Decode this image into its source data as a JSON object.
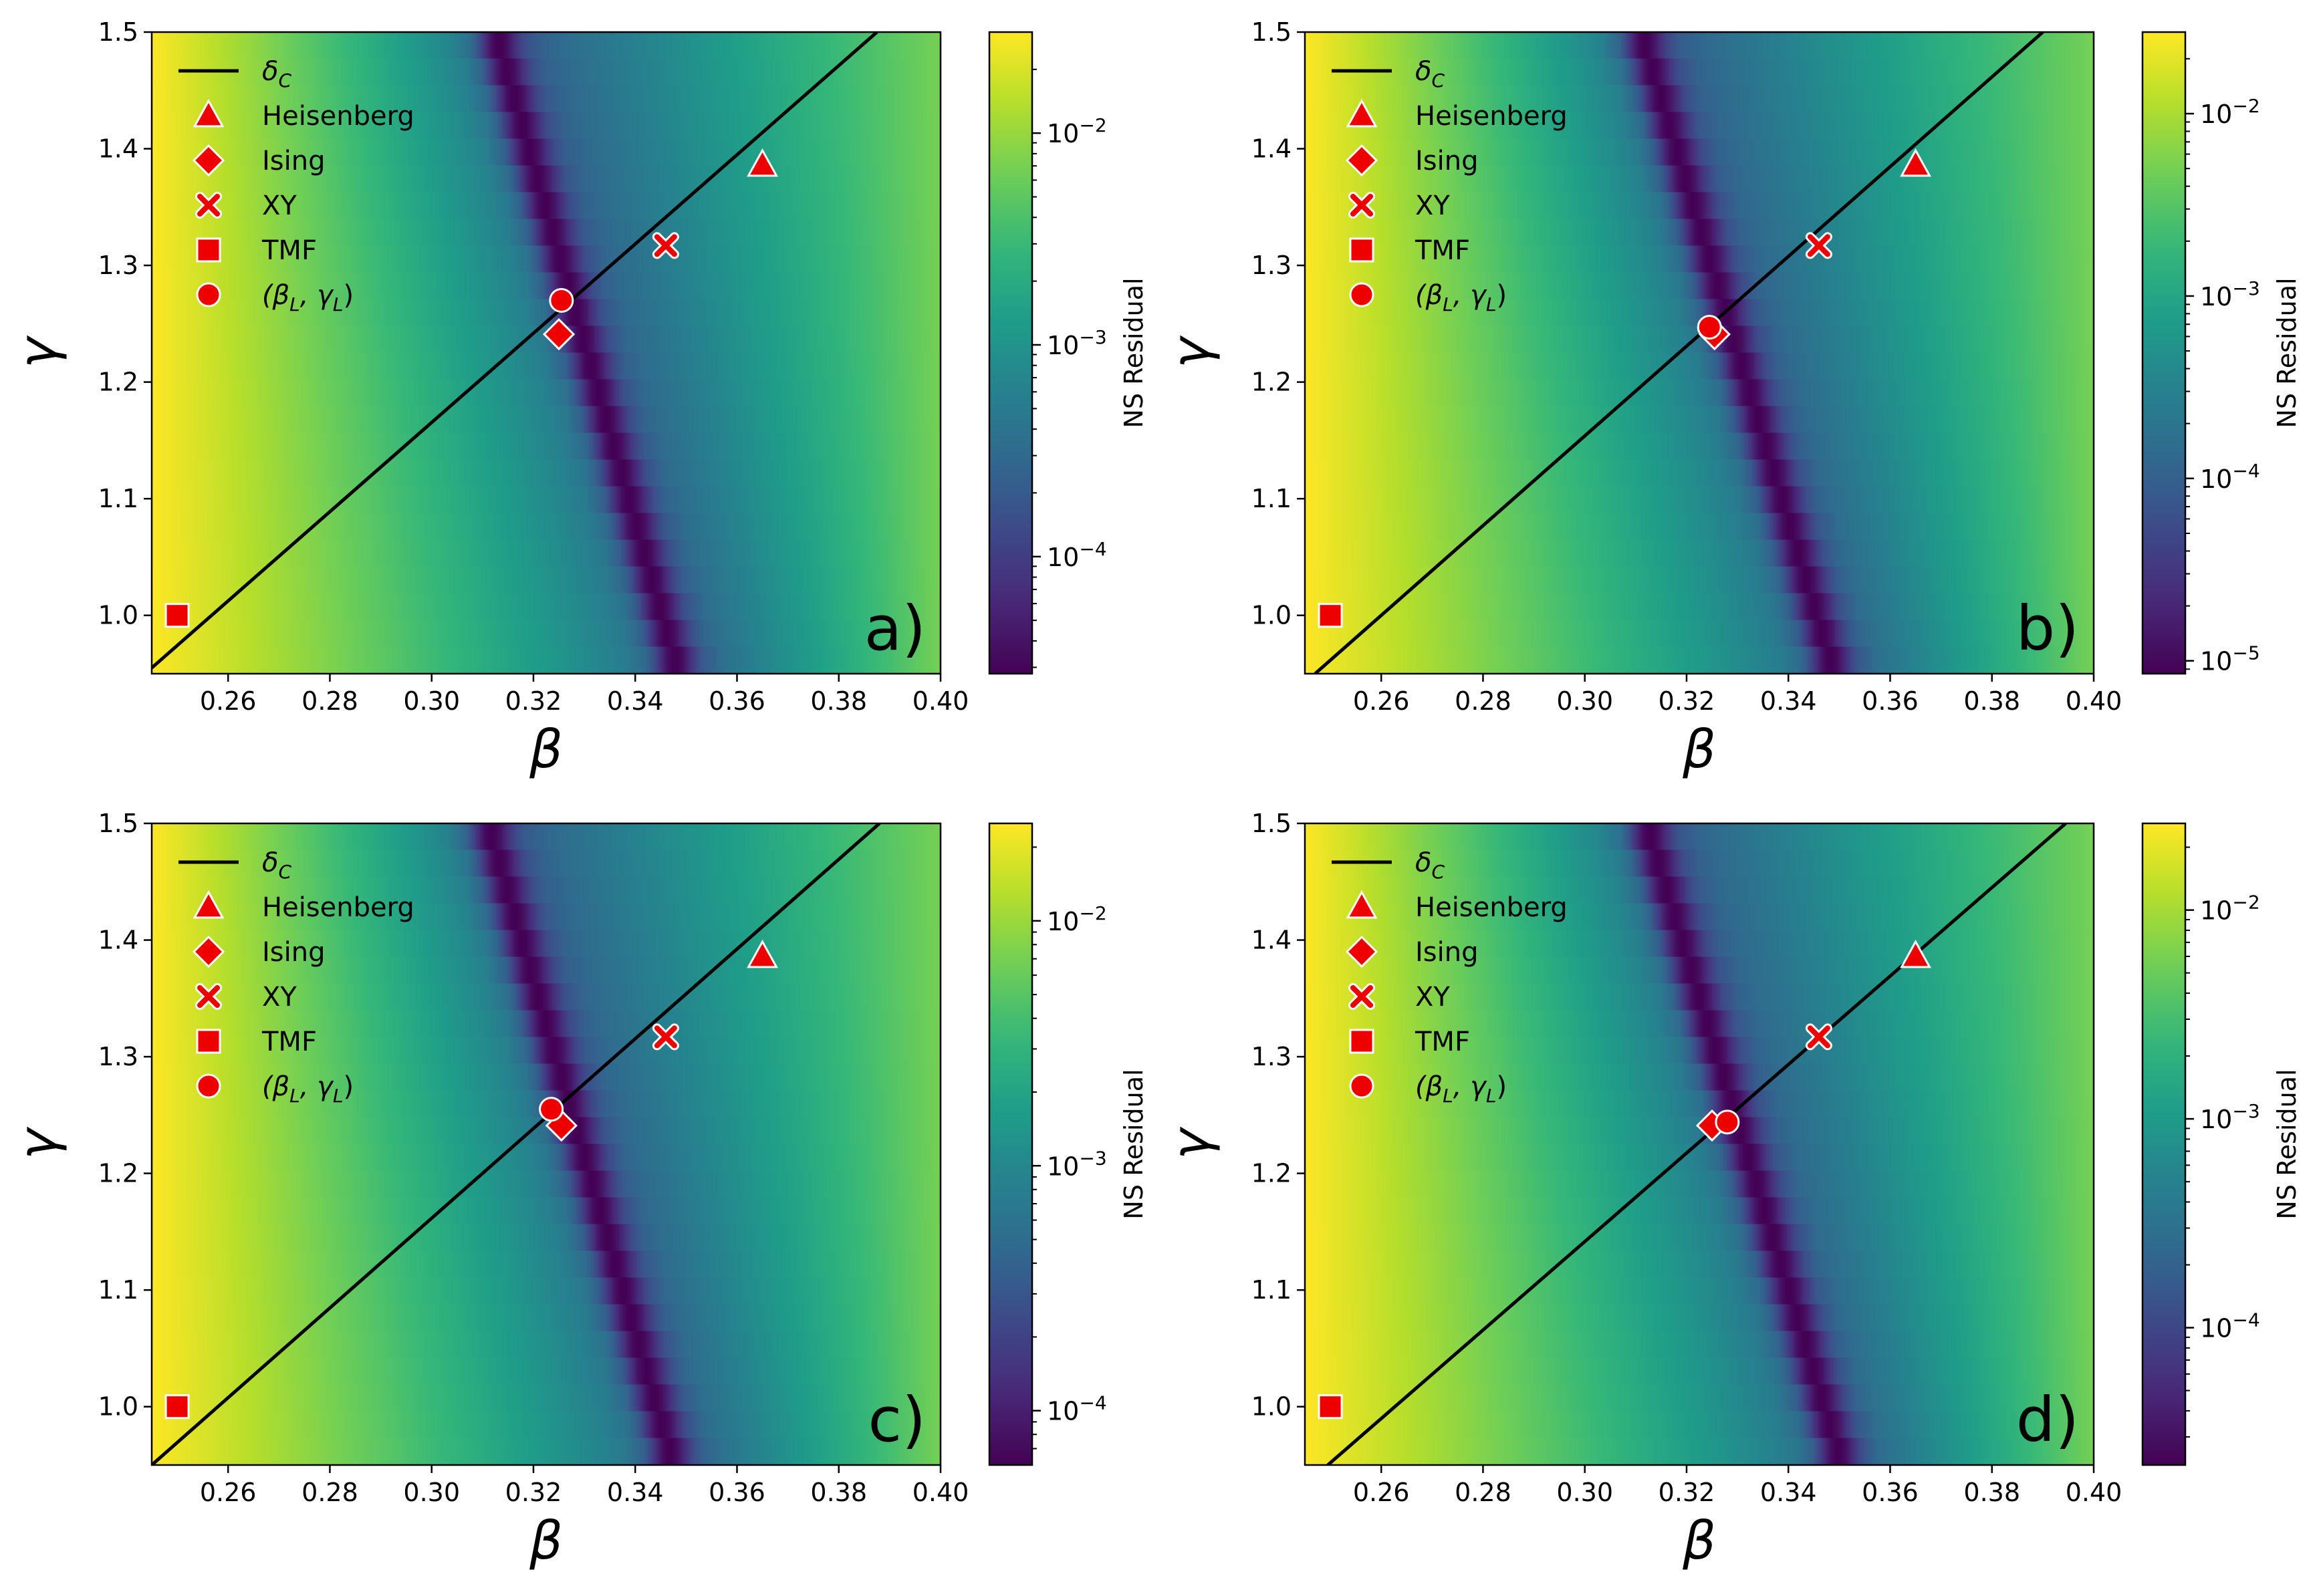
{
  "figure": {
    "colors": {
      "marker": "#ee0000",
      "marker_edge": "#ffffff",
      "line": "#000000",
      "viridis": [
        "#440154",
        "#482878",
        "#3e4989",
        "#31688e",
        "#26828e",
        "#1f9e89",
        "#35b779",
        "#6ece58",
        "#b5de2b",
        "#fde725"
      ]
    },
    "legend": [
      {
        "key": "delta_c",
        "marker": "line",
        "label_main": "δ",
        "label_sub": "C"
      },
      {
        "key": "heisenberg",
        "marker": "triangle",
        "label": "Heisenberg"
      },
      {
        "key": "ising",
        "marker": "diamond",
        "label": "Ising"
      },
      {
        "key": "xy",
        "marker": "x",
        "label": "XY"
      },
      {
        "key": "tmf",
        "marker": "square",
        "label": "TMF"
      },
      {
        "key": "lsq",
        "marker": "circle",
        "label_open": "(β",
        "label_sub1": "L",
        "label_mid": ", γ",
        "label_sub2": "L",
        "label_close": ")"
      }
    ]
  },
  "chart_data": [
    {
      "type": "heatmap",
      "panel_label": "a)",
      "xlabel": "β",
      "ylabel": "γ",
      "xlim": [
        0.245,
        0.4
      ],
      "ylim": [
        0.95,
        1.5
      ],
      "xticks": [
        0.26,
        0.28,
        0.3,
        0.32,
        0.34,
        0.36,
        0.38,
        0.4
      ],
      "xtick_labels": [
        "0.26",
        "0.28",
        "0.30",
        "0.32",
        "0.34",
        "0.36",
        "0.38",
        "0.40"
      ],
      "yticks": [
        1.0,
        1.1,
        1.2,
        1.3,
        1.4,
        1.5
      ],
      "ytick_labels": [
        "1.0",
        "1.1",
        "1.2",
        "1.3",
        "1.4",
        "1.5"
      ],
      "colorbar": {
        "label": "NS Residual",
        "scale": "log",
        "range": [
          2.8e-05,
          0.03
        ],
        "ticks": [
          {
            "value": 0.01,
            "mant": "10",
            "exp": "−2"
          },
          {
            "value": 0.001,
            "mant": "10",
            "exp": "−3"
          },
          {
            "value": 0.0001,
            "mant": "10",
            "exp": "−4"
          }
        ]
      },
      "valley": {
        "beta_at_top": 0.3125,
        "beta_at_bottom": 0.3485
      },
      "delta_c_line": {
        "beta": [
          0.245,
          0.3875
        ],
        "gamma": [
          0.955,
          1.5
        ]
      },
      "points": {
        "heisenberg": [
          0.365,
          1.386
        ],
        "ising": [
          0.325,
          1.241
        ],
        "xy": [
          0.346,
          1.317
        ],
        "tmf": [
          0.25,
          1.0
        ],
        "lsq": [
          0.3255,
          1.27
        ]
      }
    },
    {
      "type": "heatmap",
      "panel_label": "b)",
      "xlabel": "β",
      "ylabel": "γ",
      "xlim": [
        0.245,
        0.4
      ],
      "ylim": [
        0.95,
        1.5
      ],
      "xticks": [
        0.26,
        0.28,
        0.3,
        0.32,
        0.34,
        0.36,
        0.38,
        0.4
      ],
      "xtick_labels": [
        "0.26",
        "0.28",
        "0.30",
        "0.32",
        "0.34",
        "0.36",
        "0.38",
        "0.40"
      ],
      "yticks": [
        1.0,
        1.1,
        1.2,
        1.3,
        1.4,
        1.5
      ],
      "ytick_labels": [
        "1.0",
        "1.1",
        "1.2",
        "1.3",
        "1.4",
        "1.5"
      ],
      "colorbar": {
        "label": "NS Residual",
        "scale": "log",
        "range": [
          8.5e-06,
          0.028
        ],
        "ticks": [
          {
            "value": 0.01,
            "mant": "10",
            "exp": "−2"
          },
          {
            "value": 0.001,
            "mant": "10",
            "exp": "−3"
          },
          {
            "value": 0.0001,
            "mant": "10",
            "exp": "−4"
          },
          {
            "value": 1e-05,
            "mant": "10",
            "exp": "−5"
          }
        ]
      },
      "valley": {
        "beta_at_top": 0.311,
        "beta_at_bottom": 0.349
      },
      "delta_c_line": {
        "beta": [
          0.247,
          0.39
        ],
        "gamma": [
          0.95,
          1.5
        ]
      },
      "points": {
        "heisenberg": [
          0.365,
          1.386
        ],
        "ising": [
          0.3255,
          1.241
        ],
        "xy": [
          0.346,
          1.317
        ],
        "tmf": [
          0.25,
          1.0
        ],
        "lsq": [
          0.3245,
          1.247
        ]
      }
    },
    {
      "type": "heatmap",
      "panel_label": "c)",
      "xlabel": "β",
      "ylabel": "γ",
      "xlim": [
        0.245,
        0.4
      ],
      "ylim": [
        0.95,
        1.5
      ],
      "xticks": [
        0.26,
        0.28,
        0.3,
        0.32,
        0.34,
        0.36,
        0.38,
        0.4
      ],
      "xtick_labels": [
        "0.26",
        "0.28",
        "0.30",
        "0.32",
        "0.34",
        "0.36",
        "0.38",
        "0.40"
      ],
      "yticks": [
        1.0,
        1.1,
        1.2,
        1.3,
        1.4,
        1.5
      ],
      "ytick_labels": [
        "1.0",
        "1.1",
        "1.2",
        "1.3",
        "1.4",
        "1.5"
      ],
      "colorbar": {
        "label": "NS Residual",
        "scale": "log",
        "range": [
          6e-05,
          0.025
        ],
        "ticks": [
          {
            "value": 0.01,
            "mant": "10",
            "exp": "−2"
          },
          {
            "value": 0.001,
            "mant": "10",
            "exp": "−3"
          },
          {
            "value": 0.0001,
            "mant": "10",
            "exp": "−4"
          }
        ]
      },
      "valley": {
        "beta_at_top": 0.311,
        "beta_at_bottom": 0.3475
      },
      "delta_c_line": {
        "beta": [
          0.245,
          0.388
        ],
        "gamma": [
          0.95,
          1.5
        ]
      },
      "points": {
        "heisenberg": [
          0.365,
          1.386
        ],
        "ising": [
          0.3255,
          1.241
        ],
        "xy": [
          0.346,
          1.317
        ],
        "tmf": [
          0.25,
          1.0
        ],
        "lsq": [
          0.3235,
          1.255
        ]
      }
    },
    {
      "type": "heatmap",
      "panel_label": "d)",
      "xlabel": "β",
      "ylabel": "γ",
      "xlim": [
        0.245,
        0.4
      ],
      "ylim": [
        0.95,
        1.5
      ],
      "xticks": [
        0.26,
        0.28,
        0.3,
        0.32,
        0.34,
        0.36,
        0.38,
        0.4
      ],
      "xtick_labels": [
        "0.26",
        "0.28",
        "0.30",
        "0.32",
        "0.34",
        "0.36",
        "0.38",
        "0.40"
      ],
      "yticks": [
        1.0,
        1.1,
        1.2,
        1.3,
        1.4,
        1.5
      ],
      "ytick_labels": [
        "1.0",
        "1.1",
        "1.2",
        "1.3",
        "1.4",
        "1.5"
      ],
      "colorbar": {
        "label": "NS Residual",
        "scale": "log",
        "range": [
          2.2e-05,
          0.026
        ],
        "ticks": [
          {
            "value": 0.01,
            "mant": "10",
            "exp": "−2"
          },
          {
            "value": 0.001,
            "mant": "10",
            "exp": "−3"
          },
          {
            "value": 0.0001,
            "mant": "10",
            "exp": "−4"
          }
        ]
      },
      "valley": {
        "beta_at_top": 0.312,
        "beta_at_bottom": 0.3505
      },
      "delta_c_line": {
        "beta": [
          0.2495,
          0.3945
        ],
        "gamma": [
          0.95,
          1.5
        ]
      },
      "points": {
        "heisenberg": [
          0.365,
          1.386
        ],
        "ising": [
          0.325,
          1.241
        ],
        "xy": [
          0.346,
          1.317
        ],
        "tmf": [
          0.25,
          1.0
        ],
        "lsq": [
          0.328,
          1.244
        ]
      }
    }
  ]
}
